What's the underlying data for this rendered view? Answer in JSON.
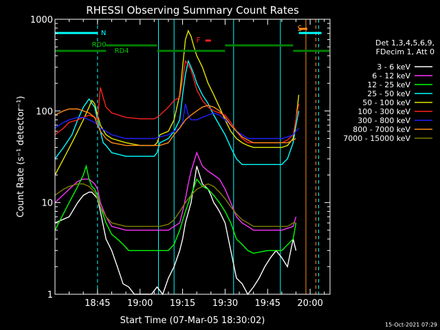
{
  "chart_data": {
    "type": "line",
    "title": "RHESSI Observing Summary Count Rates",
    "xlabel": "Start Time (07-Mar-05 18:30:02)",
    "ylabel": "Count Rate (s⁻¹ detector⁻¹)",
    "yscale": "log",
    "ylim": [
      1,
      1000
    ],
    "xlim_minutes_from_start": [
      0,
      97
    ],
    "x_ticks": [
      {
        "label": "18:45",
        "minutes": 15
      },
      {
        "label": "19:00",
        "minutes": 30
      },
      {
        "label": "19:15",
        "minutes": 45
      },
      {
        "label": "19:30",
        "minutes": 60
      },
      {
        "label": "19:45",
        "minutes": 75
      },
      {
        "label": "20:00",
        "minutes": 90
      }
    ],
    "y_ticks": [
      1,
      10,
      100,
      1000
    ],
    "legend_header": [
      "Det 1,3,4,5,6,9,",
      "FDecim 1, Att 0"
    ],
    "legend_position": "right",
    "timestamp": "15-Oct-2021 07:29",
    "annotations": {
      "rd0": "RD0",
      "rd4": "RD4",
      "n": "N",
      "f": "F",
      "s": "S"
    },
    "series": [
      {
        "name": "3 - 6 keV",
        "color": "#ffffff",
        "x": [
          0,
          5,
          8,
          10,
          12,
          13,
          14,
          15,
          16,
          18,
          20,
          22,
          24,
          26,
          28,
          30,
          34,
          36,
          38,
          40,
          42,
          44,
          45,
          46,
          48,
          50,
          52,
          54,
          55,
          56,
          57,
          58,
          60,
          62,
          64,
          66,
          68,
          70,
          72,
          74,
          76,
          78,
          80,
          82,
          84,
          85
        ],
        "y": [
          6,
          7,
          10,
          12,
          13,
          13,
          12,
          11,
          8,
          4,
          3,
          2,
          1.3,
          1.2,
          1,
          1,
          1,
          1.2,
          1,
          1.5,
          2,
          3,
          4,
          6,
          10,
          25,
          16,
          14,
          12,
          10,
          9,
          8,
          6,
          3,
          1.5,
          1.3,
          1,
          1.2,
          1.5,
          2,
          2.5,
          3,
          2.5,
          2,
          4,
          3
        ]
      },
      {
        "name": "6 - 12 keV",
        "color": "#ff33ff",
        "x": [
          0,
          5,
          8,
          10,
          12,
          14,
          15,
          16,
          18,
          20,
          25,
          30,
          35,
          40,
          42,
          44,
          45,
          46,
          47,
          48,
          50,
          52,
          54,
          56,
          58,
          60,
          62,
          64,
          66,
          68,
          70,
          80,
          84,
          85
        ],
        "y": [
          10,
          14,
          17,
          18,
          18,
          16,
          14,
          10,
          7,
          5.5,
          5,
          5,
          5,
          5,
          5.5,
          6,
          8,
          11,
          16,
          22,
          35,
          25,
          22,
          20,
          18,
          14,
          10,
          7,
          6,
          5.5,
          5,
          5,
          5.5,
          7
        ]
      },
      {
        "name": "12 - 25 keV",
        "color": "#00ff00",
        "x": [
          0,
          5,
          8,
          10,
          11,
          12,
          13,
          14,
          15,
          16,
          18,
          20,
          22,
          24,
          26,
          28,
          30,
          35,
          40,
          42,
          44,
          46,
          48,
          50,
          52,
          54,
          56,
          58,
          60,
          62,
          64,
          66,
          68,
          70,
          75,
          80,
          84,
          85
        ],
        "y": [
          5,
          10,
          15,
          20,
          25,
          18,
          15,
          14,
          12,
          9,
          6,
          4.5,
          4,
          3.5,
          3,
          3,
          3,
          3,
          3,
          3.5,
          5,
          8,
          12,
          18,
          15,
          14,
          12,
          10,
          8,
          6,
          4,
          3.5,
          3,
          2.8,
          3,
          3,
          4,
          6
        ]
      },
      {
        "name": "25 - 50 keV",
        "color": "#00ffff",
        "x": [
          0,
          3,
          6,
          8,
          10,
          12,
          14,
          15,
          16,
          17,
          18,
          20,
          25,
          30,
          35,
          36,
          37,
          40,
          42,
          44,
          45,
          46,
          47,
          48,
          49,
          50,
          52,
          54,
          56,
          58,
          60,
          62,
          64,
          66,
          68,
          70,
          72,
          75,
          78,
          80,
          81,
          82,
          84,
          85,
          86
        ],
        "y": [
          30,
          40,
          55,
          80,
          110,
          135,
          110,
          80,
          60,
          45,
          42,
          35,
          32,
          32,
          32,
          35,
          45,
          50,
          60,
          80,
          150,
          250,
          350,
          300,
          250,
          200,
          150,
          120,
          90,
          70,
          55,
          40,
          30,
          26,
          26,
          26,
          26,
          26,
          26,
          26,
          28,
          30,
          45,
          70,
          100
        ]
      },
      {
        "name": "50 - 100 keV",
        "color": "#e6e600",
        "x": [
          0,
          3,
          6,
          8,
          10,
          12,
          13,
          14,
          15,
          16,
          18,
          20,
          25,
          30,
          35,
          36,
          37,
          40,
          42,
          44,
          45,
          46,
          47,
          48,
          49,
          50,
          52,
          54,
          56,
          58,
          60,
          62,
          64,
          66,
          68,
          70,
          75,
          80,
          82,
          84,
          85,
          86
        ],
        "y": [
          20,
          30,
          45,
          60,
          80,
          110,
          130,
          120,
          90,
          70,
          55,
          50,
          45,
          42,
          42,
          45,
          55,
          60,
          80,
          150,
          300,
          600,
          750,
          650,
          500,
          400,
          300,
          200,
          150,
          110,
          80,
          60,
          50,
          45,
          42,
          40,
          40,
          40,
          42,
          50,
          80,
          150
        ]
      },
      {
        "name": "100 - 300 keV",
        "color": "#ff2020",
        "x": [
          0,
          3,
          5,
          8,
          10,
          12,
          14,
          15,
          16,
          17,
          18,
          20,
          25,
          30,
          35,
          36,
          37,
          40,
          42,
          44,
          45,
          46,
          47,
          48,
          49,
          50,
          52,
          54,
          56,
          58,
          60,
          62,
          64,
          66,
          68,
          70,
          75,
          80,
          82,
          84,
          85,
          86
        ],
        "y": [
          55,
          65,
          75,
          80,
          85,
          90,
          85,
          80,
          180,
          140,
          110,
          95,
          85,
          82,
          82,
          85,
          90,
          110,
          130,
          140,
          220,
          350,
          320,
          280,
          220,
          170,
          130,
          110,
          100,
          95,
          90,
          75,
          60,
          50,
          45,
          45,
          45,
          45,
          48,
          55,
          80,
          120
        ]
      },
      {
        "name": "300 - 800 keV",
        "color": "#2020ff",
        "x": [
          0,
          3,
          5,
          8,
          10,
          12,
          14,
          15,
          16,
          18,
          20,
          25,
          30,
          35,
          37,
          40,
          42,
          44,
          45,
          46,
          47,
          48,
          50,
          52,
          54,
          56,
          58,
          60,
          62,
          64,
          66,
          68,
          70,
          75,
          80,
          82,
          84,
          85,
          86
        ],
        "y": [
          65,
          75,
          80,
          85,
          85,
          80,
          75,
          70,
          65,
          60,
          55,
          50,
          50,
          50,
          52,
          55,
          60,
          65,
          75,
          120,
          90,
          80,
          80,
          85,
          90,
          95,
          90,
          80,
          70,
          60,
          55,
          50,
          50,
          50,
          50,
          52,
          55,
          60,
          65
        ]
      },
      {
        "name": "800 - 7000 keV",
        "color": "#ff8c1a",
        "x": [
          0,
          3,
          5,
          8,
          10,
          12,
          14,
          15,
          16,
          18,
          20,
          25,
          30,
          35,
          37,
          40,
          42,
          44,
          46,
          48,
          50,
          52,
          54,
          56,
          58,
          60,
          62,
          64,
          66,
          68,
          70,
          75,
          80,
          82,
          84,
          85
        ],
        "y": [
          90,
          100,
          105,
          105,
          100,
          95,
          85,
          70,
          60,
          50,
          45,
          42,
          42,
          42,
          42,
          45,
          55,
          65,
          80,
          90,
          100,
          110,
          115,
          110,
          100,
          85,
          70,
          60,
          52,
          48,
          45,
          45,
          45,
          45,
          48,
          50
        ]
      },
      {
        "name": "7000 - 15000 keV",
        "color": "#808000",
        "x": [
          0,
          3,
          5,
          8,
          10,
          12,
          14,
          15,
          16,
          18,
          20,
          25,
          30,
          35,
          37,
          40,
          42,
          44,
          46,
          48,
          50,
          52,
          54,
          56,
          58,
          60,
          62,
          64,
          66,
          68,
          70,
          75,
          80,
          82,
          84,
          85
        ],
        "y": [
          12,
          14,
          15,
          16,
          16,
          15,
          13,
          11,
          9,
          7,
          6,
          5.5,
          5.5,
          5.5,
          5.5,
          5.8,
          6.5,
          8,
          10,
          12,
          14,
          15,
          16,
          15,
          13,
          11,
          9,
          7.5,
          6.5,
          6,
          5.5,
          5.5,
          5.5,
          5.5,
          6,
          6
        ]
      }
    ],
    "bars": [
      {
        "label": "N",
        "color": "#00ffff",
        "segments": [
          [
            0,
            15
          ],
          [
            86,
            94
          ]
        ]
      },
      {
        "label": "RD0",
        "color": "#008000",
        "segments": [
          [
            18,
            36
          ],
          [
            60,
            84
          ]
        ]
      },
      {
        "label": "RD4",
        "color": "#008000",
        "segments": [
          [
            0,
            18
          ],
          [
            36,
            60
          ],
          [
            84,
            97
          ]
        ]
      },
      {
        "label": "F",
        "color": "#ff2020",
        "segments": [
          [
            53,
            55
          ]
        ]
      },
      {
        "label": "S",
        "color": "#ff8c1a",
        "segments": [
          [
            86,
            89
          ]
        ]
      }
    ],
    "vertical_markers": [
      {
        "color": "#00ffff",
        "style": "solid",
        "x": 0
      },
      {
        "color": "#00ffff",
        "style": "dashed",
        "x": 15
      },
      {
        "color": "#00ffff",
        "style": "solid",
        "x": 36.5
      },
      {
        "color": "#00ffff",
        "style": "solid",
        "x": 42
      },
      {
        "color": "#00ffff",
        "style": "solid",
        "x": 63
      },
      {
        "color": "#00ffff",
        "style": "solid",
        "x": 79.5
      },
      {
        "color": "#ff8c1a",
        "style": "solid",
        "x": 88.5
      },
      {
        "color": "#ff8c1a",
        "style": "dashed",
        "x": 92
      },
      {
        "color": "#00ffff",
        "style": "dashed",
        "x": 93
      }
    ]
  }
}
